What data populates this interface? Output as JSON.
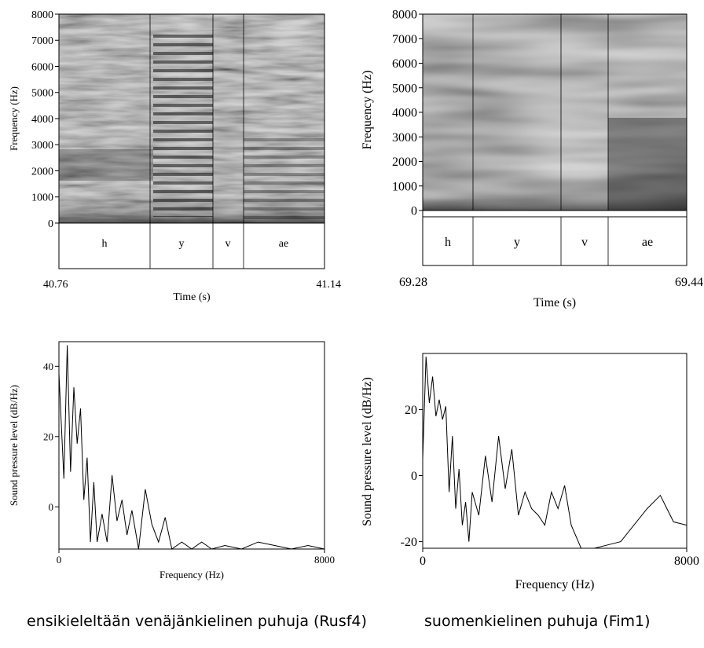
{
  "panels": {
    "spec_left": {
      "ylabel": "Frequency (Hz)",
      "yticks": [
        "0",
        "1000",
        "2000",
        "3000",
        "4000",
        "5000",
        "6000",
        "7000",
        "8000"
      ],
      "tier": [
        "h",
        "y",
        "v",
        "ae"
      ],
      "t_start": "40.76",
      "t_end": "41.14",
      "xlabel": "Time (s)"
    },
    "spec_right": {
      "ylabel": "Frequency (Hz)",
      "yticks": [
        "0",
        "1000",
        "2000",
        "3000",
        "4000",
        "5000",
        "6000",
        "7000",
        "8000"
      ],
      "tier": [
        "h",
        "y",
        "v",
        "ae"
      ],
      "t_start": "69.28",
      "t_end": "69.44",
      "xlabel": "Time (s)"
    },
    "ltas_left": {
      "ylabel": "Sound pressure level (dB/Hz)",
      "xlabel": "Frequency (Hz)",
      "yticks": [
        "0",
        "20",
        "40"
      ],
      "xticks": [
        "0",
        "8000"
      ]
    },
    "ltas_right": {
      "ylabel": "Sound pressure level (dB/Hz)",
      "xlabel": "Frequency (Hz)",
      "yticks": [
        "-20",
        "0",
        "20"
      ],
      "xticks": [
        "0",
        "8000"
      ]
    }
  },
  "captions": {
    "left": "ensikieleltään venäjänkielinen puhuja (Rusf4)",
    "right": "suomenkielinen puhuja (Fim1)"
  },
  "chart_data": [
    {
      "type": "heatmap",
      "ylabel": "Frequency (Hz)",
      "xlabel": "Time (s)",
      "ylim": [
        0,
        8000
      ],
      "xlim": [
        40.76,
        41.14
      ],
      "segments": [
        {
          "label": "h",
          "start": 40.76,
          "end": 40.863
        },
        {
          "label": "y",
          "start": 40.863,
          "end": 40.952
        },
        {
          "label": "v",
          "start": 40.952,
          "end": 40.995
        },
        {
          "label": "ae",
          "start": 40.995,
          "end": 41.14
        }
      ]
    },
    {
      "type": "heatmap",
      "ylabel": "Frequency (Hz)",
      "xlabel": "Time (s)",
      "ylim": [
        0,
        8000
      ],
      "xlim": [
        69.28,
        69.44
      ],
      "segments": [
        {
          "label": "h",
          "start": 69.28,
          "end": 69.306
        },
        {
          "label": "y",
          "start": 69.306,
          "end": 69.35
        },
        {
          "label": "v",
          "start": 69.35,
          "end": 69.374
        },
        {
          "label": "ae",
          "start": 69.374,
          "end": 69.44
        }
      ]
    },
    {
      "type": "line",
      "xlabel": "Frequency (Hz)",
      "ylabel": "Sound pressure level (dB/Hz)",
      "xlim": [
        0,
        8000
      ],
      "ylim": [
        -12,
        47
      ],
      "x": [
        0,
        150,
        250,
        350,
        450,
        550,
        650,
        750,
        850,
        950,
        1050,
        1150,
        1300,
        1450,
        1600,
        1750,
        1900,
        2050,
        2200,
        2400,
        2600,
        2800,
        3000,
        3200,
        3400,
        3700,
        4000,
        4300,
        4600,
        5000,
        5500,
        6000,
        6500,
        7000,
        7500,
        8000
      ],
      "y": [
        38,
        8,
        46,
        10,
        34,
        18,
        28,
        2,
        14,
        -10,
        7,
        -10,
        -2,
        -10,
        9,
        -4,
        2,
        -8,
        -1,
        -12,
        5,
        -5,
        -10,
        -3,
        -12,
        -10,
        -12,
        -10,
        -12,
        -11,
        -12,
        -10,
        -11,
        -12,
        -11,
        -12
      ]
    },
    {
      "type": "line",
      "xlabel": "Frequency (Hz)",
      "ylabel": "Sound pressure level (dB/Hz)",
      "xlim": [
        0,
        8000
      ],
      "ylim": [
        -22,
        37
      ],
      "x": [
        0,
        100,
        200,
        300,
        400,
        500,
        600,
        700,
        800,
        900,
        1000,
        1100,
        1200,
        1300,
        1400,
        1500,
        1700,
        1900,
        2100,
        2300,
        2500,
        2700,
        2900,
        3100,
        3300,
        3500,
        3700,
        3900,
        4100,
        4300,
        4500,
        4800,
        5200,
        5600,
        6000,
        6400,
        6800,
        7200,
        7600,
        8000
      ],
      "y": [
        5,
        36,
        22,
        30,
        18,
        23,
        17,
        21,
        -5,
        12,
        -10,
        2,
        -15,
        -8,
        -20,
        -5,
        -12,
        6,
        -8,
        12,
        -4,
        8,
        -12,
        -5,
        -10,
        -12,
        -15,
        -5,
        -10,
        -3,
        -15,
        -22,
        -22,
        -21,
        -20,
        -15,
        -10,
        -6,
        -14,
        -15
      ]
    }
  ]
}
